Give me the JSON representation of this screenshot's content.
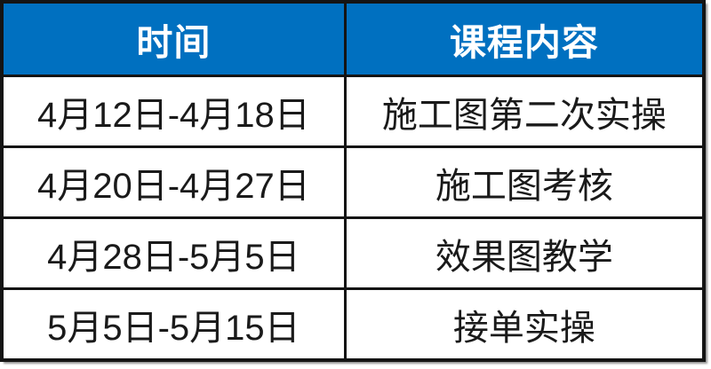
{
  "colors": {
    "header_bg": "#0070c0",
    "header_text": "#ffffff",
    "border": "#141414",
    "body_text": "#1a1a1a",
    "body_bg": "#ffffff"
  },
  "table": {
    "header": {
      "time": "时间",
      "content": "课程内容"
    },
    "rows": [
      {
        "time": "4月12日-4月18日",
        "content": "施工图第二次实操"
      },
      {
        "time": "4月20日-4月27日",
        "content": "施工图考核"
      },
      {
        "time": "4月28日-5月5日",
        "content": "效果图教学"
      },
      {
        "time": "5月5日-5月15日",
        "content": "接单实操"
      }
    ]
  }
}
